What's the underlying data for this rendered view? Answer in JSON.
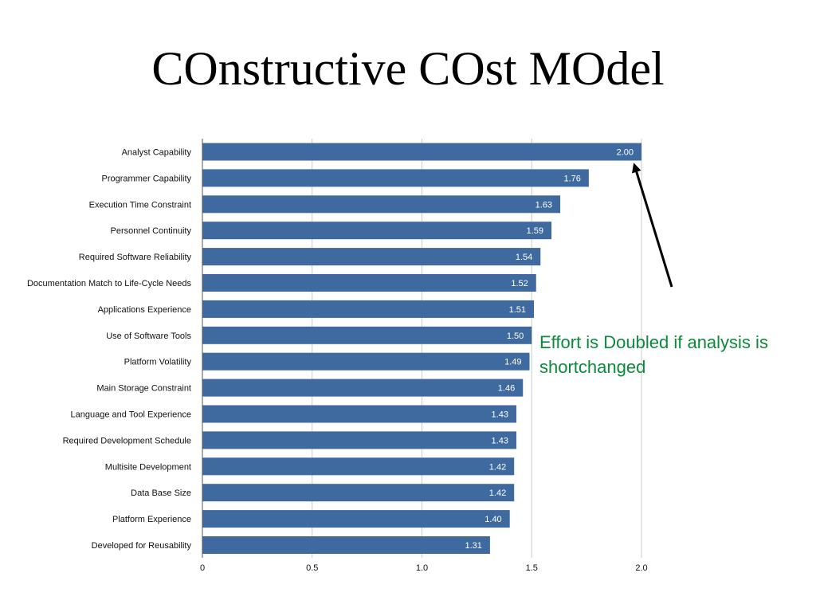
{
  "slide": {
    "title": "COnstructive COst MOdel",
    "annotation": "Effort is Doubled if analysis is shortchanged"
  },
  "colors": {
    "bar": "#3f6a9f",
    "gridline": "#cccccc",
    "axis": "#555555",
    "annotation_text": "#0a8a3a",
    "arrow": "#000000"
  },
  "chart_data": {
    "type": "bar",
    "orientation": "horizontal",
    "categories": [
      "Analyst Capability",
      "Programmer Capability",
      "Execution Time Constraint",
      "Personnel Continuity",
      "Required Software Reliability",
      "Documentation Match to Life-Cycle Needs",
      "Applications Experience",
      "Use of Software Tools",
      "Platform Volatility",
      "Main Storage Constraint",
      "Language and Tool Experience",
      "Required Development Schedule",
      "Multisite Development",
      "Data Base Size",
      "Platform Experience",
      "Developed for Reusability"
    ],
    "values": [
      2.0,
      1.76,
      1.63,
      1.59,
      1.54,
      1.52,
      1.51,
      1.5,
      1.49,
      1.46,
      1.43,
      1.43,
      1.42,
      1.42,
      1.4,
      1.31
    ],
    "data_labels": [
      "2.00",
      "1.76",
      "1.63",
      "1.59",
      "1.54",
      "1.52",
      "1.51",
      "1.50",
      "1.49",
      "1.46",
      "1.43",
      "1.43",
      "1.42",
      "1.42",
      "1.40",
      "1.31"
    ],
    "xlim": [
      0,
      2.0
    ],
    "xticks": [
      "0",
      "0.5",
      "1.0",
      "1.5",
      "2.0"
    ],
    "xtick_values": [
      0,
      0.5,
      1.0,
      1.5,
      2.0
    ],
    "grid": true,
    "legend": "none"
  }
}
